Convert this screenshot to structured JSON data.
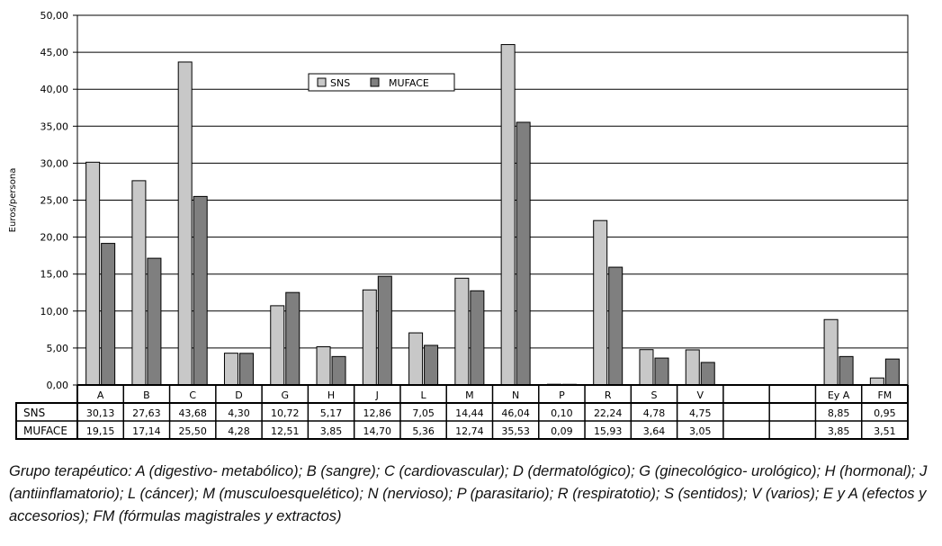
{
  "chart_data": {
    "type": "bar",
    "ylabel": "Euros/persona",
    "ylim": [
      0,
      50
    ],
    "yticks": [
      "0,00",
      "5,00",
      "10,00",
      "15,00",
      "20,00",
      "25,00",
      "30,00",
      "35,00",
      "40,00",
      "45,00",
      "50,00"
    ],
    "grid": true,
    "legend_placement": "top-center",
    "categories": [
      "A",
      "B",
      "C",
      "D",
      "G",
      "H",
      "J",
      "L",
      "M",
      "N",
      "P",
      "R",
      "S",
      "V",
      "",
      "",
      "Ey A",
      "FM"
    ],
    "series": [
      {
        "name": "SNS",
        "color": "#c8c8c8",
        "values": [
          30.13,
          27.63,
          43.68,
          4.3,
          10.72,
          5.17,
          12.86,
          7.05,
          14.44,
          46.04,
          0.1,
          22.24,
          4.78,
          4.75,
          null,
          null,
          8.85,
          0.95
        ],
        "labels": [
          "30,13",
          "27,63",
          "43,68",
          "4,30",
          "10,72",
          "5,17",
          "12,86",
          "7,05",
          "14,44",
          "46,04",
          "0,10",
          "22,24",
          "4,78",
          "4,75",
          "",
          "",
          "8,85",
          "0,95"
        ]
      },
      {
        "name": "MUFACE",
        "color": "#7f7f7f",
        "values": [
          19.15,
          17.14,
          25.5,
          4.28,
          12.51,
          3.85,
          14.7,
          5.36,
          12.74,
          35.53,
          0.09,
          15.93,
          3.64,
          3.05,
          null,
          null,
          3.85,
          3.51
        ],
        "labels": [
          "19,15",
          "17,14",
          "25,50",
          "4,28",
          "12,51",
          "3,85",
          "14,70",
          "5,36",
          "12,74",
          "35,53",
          "0,09",
          "15,93",
          "3,64",
          "3,05",
          "",
          "",
          "3,85",
          "3,51"
        ]
      }
    ]
  },
  "caption": "Grupo terapéutico: A (digestivo- metabólico); B (sangre); C (cardiovascular); D (dermatológico); G (ginecológico- urológico); H (hormonal); J (antiinflamatorio); L (cáncer); M (musculoesquelético); N (nervioso); P (parasitario); R (respiratotio); S (sentidos); V (varios); E y A (efectos y accesorios); FM (fórmulas magistrales y extractos)"
}
